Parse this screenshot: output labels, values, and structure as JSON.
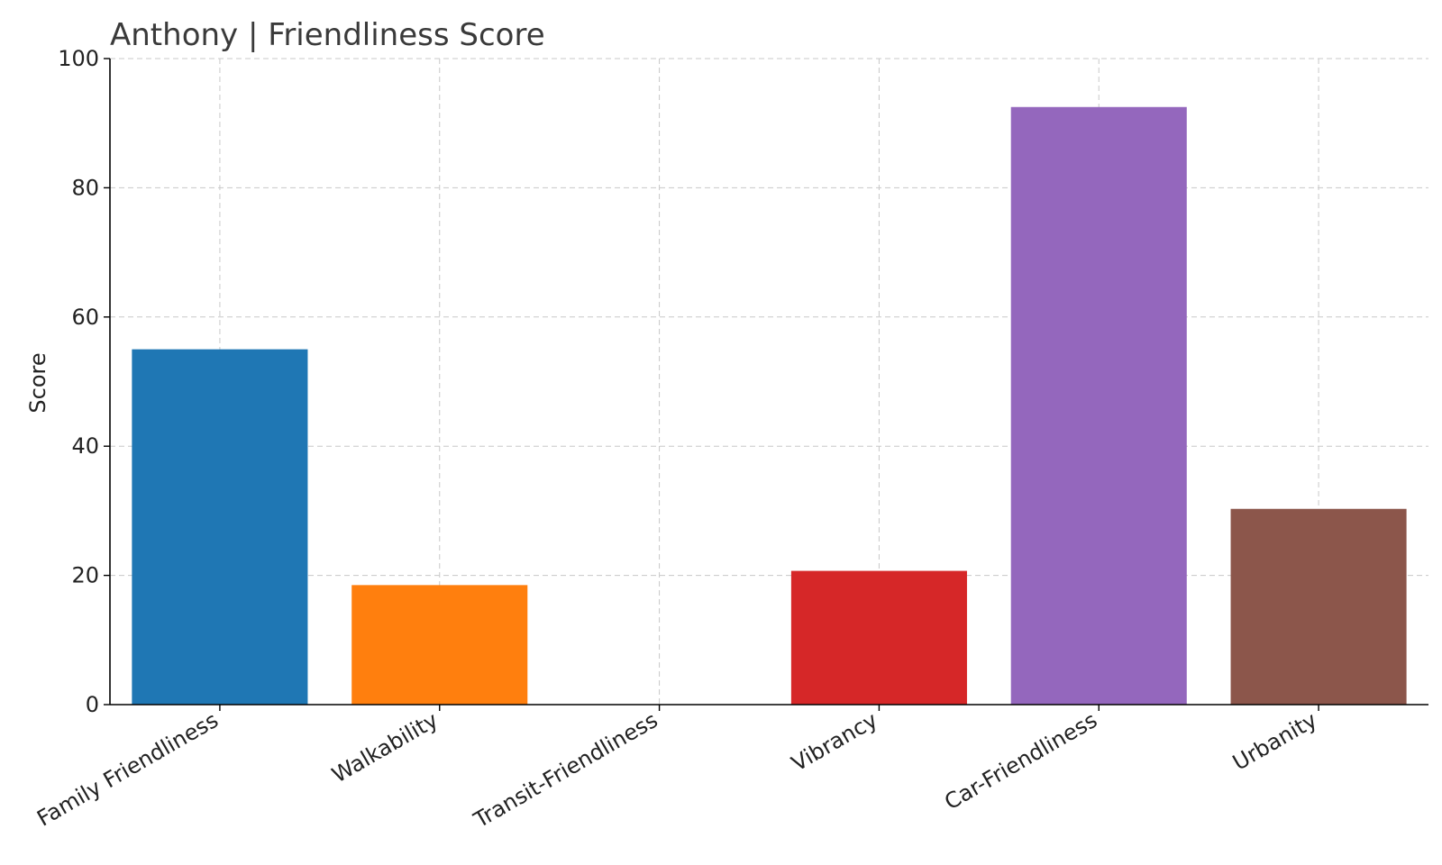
{
  "chart_data": {
    "type": "bar",
    "title": "Anthony |  Friendliness Score",
    "xlabel": "",
    "ylabel": "Score",
    "ylim": [
      0,
      100
    ],
    "yticks": [
      0,
      20,
      40,
      60,
      80,
      100
    ],
    "categories": [
      "Family Friendliness",
      "Walkability",
      "Transit-Friendliness",
      "Vibrancy",
      "Car-Friendliness",
      "Urbanity"
    ],
    "values": [
      55,
      18.5,
      0,
      20.7,
      92.5,
      30.3
    ],
    "colors": [
      "#1f77b4",
      "#ff7f0e",
      "#2ca02c",
      "#d62728",
      "#9467bd",
      "#8c564b"
    ],
    "grid": true,
    "legend": "none"
  }
}
